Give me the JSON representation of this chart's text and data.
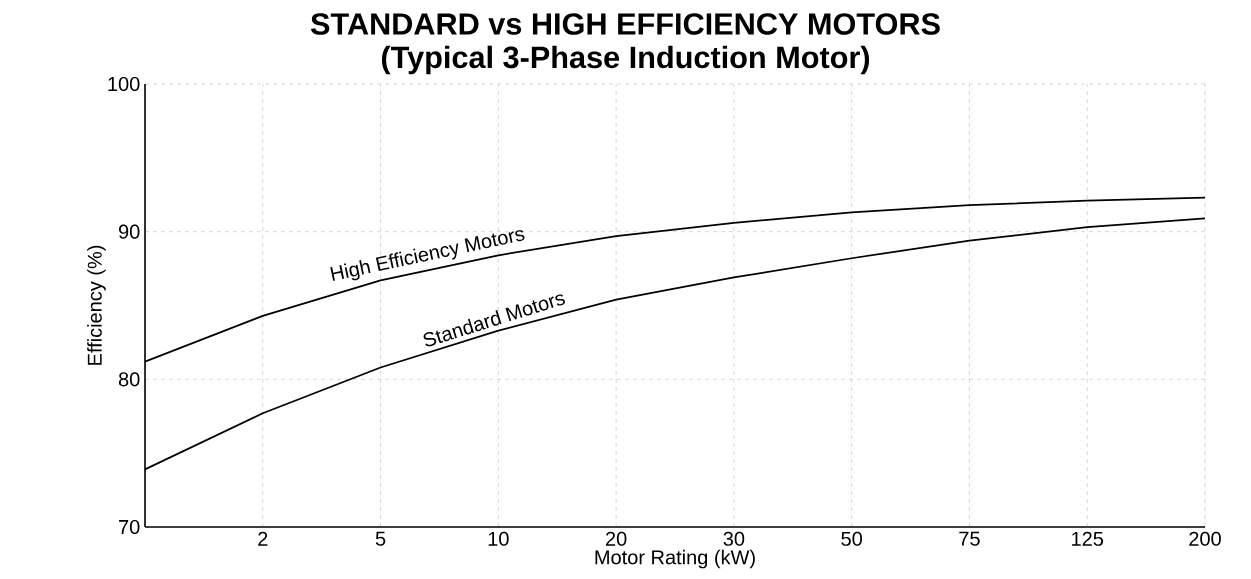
{
  "chart_data": {
    "type": "line",
    "title": "STANDARD vs HIGH EFFICIENCY MOTORS",
    "subtitle": "(Typical 3-Phase Induction Motor)",
    "xlabel": "Motor Rating (kW)",
    "ylabel": "Efficiency (%)",
    "categories": [
      null,
      "2",
      "5",
      "10",
      "20",
      "30",
      "50",
      "75",
      "125",
      "200"
    ],
    "series": [
      {
        "name": "High Efficiency Motors",
        "color": "#000000",
        "values": [
          81.2,
          84.3,
          86.7,
          88.4,
          89.7,
          90.6,
          91.3,
          91.8,
          92.1,
          92.3
        ]
      },
      {
        "name": "Standard Motors",
        "color": "#000000",
        "values": [
          73.9,
          77.7,
          80.8,
          83.3,
          85.4,
          86.9,
          88.2,
          89.4,
          90.3,
          90.9
        ]
      }
    ],
    "ylim": [
      70,
      100
    ],
    "yticks": [
      70,
      80,
      90,
      100
    ],
    "grid": true,
    "marker": "none",
    "line_style": "solid"
  }
}
